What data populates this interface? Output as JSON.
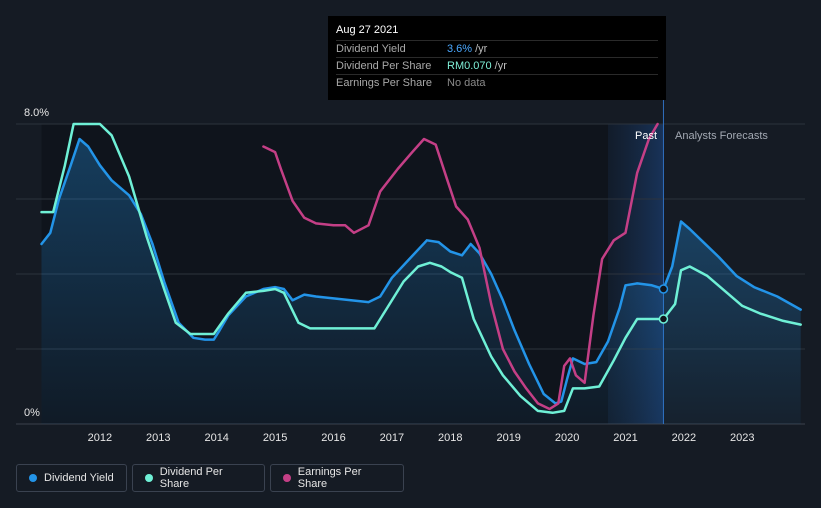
{
  "tooltip": {
    "date": "Aug 27 2021",
    "rows": [
      {
        "name": "Dividend Yield",
        "value": "3.6%",
        "unit": "/yr"
      },
      {
        "name": "Dividend Per Share",
        "value": "RM0.070",
        "unit": "/yr"
      },
      {
        "name": "Earnings Per Share",
        "value": "No data",
        "unit": ""
      }
    ]
  },
  "labels": {
    "past": "Past",
    "forecast": "Analysts Forecasts"
  },
  "legend": [
    {
      "label": "Dividend Yield",
      "color": "#2394e8"
    },
    {
      "label": "Dividend Per Share",
      "color": "#6ff0d6"
    },
    {
      "label": "Earnings Per Share",
      "color": "#c43f86"
    }
  ],
  "chart_data": {
    "type": "line",
    "title": "",
    "y_tick_labels": [
      "8.0%",
      "0%"
    ],
    "ylim": [
      0,
      8
    ],
    "x_ticks": [
      2012,
      2013,
      2014,
      2015,
      2016,
      2017,
      2018,
      2019,
      2020,
      2021,
      2022,
      2023
    ],
    "xlim": [
      2011.0,
      2024.0
    ],
    "past_end": 2021.65,
    "grid": true,
    "legend_position": "bottom-left",
    "series": [
      {
        "name": "Dividend Yield",
        "color": "#2394e8",
        "fill": true,
        "points": [
          [
            2011.0,
            4.8
          ],
          [
            2011.15,
            5.1
          ],
          [
            2011.3,
            6.0
          ],
          [
            2011.5,
            6.9
          ],
          [
            2011.65,
            7.6
          ],
          [
            2011.8,
            7.4
          ],
          [
            2012.0,
            6.9
          ],
          [
            2012.2,
            6.5
          ],
          [
            2012.5,
            6.1
          ],
          [
            2012.7,
            5.6
          ],
          [
            2012.9,
            4.8
          ],
          [
            2013.1,
            3.8
          ],
          [
            2013.35,
            2.7
          ],
          [
            2013.6,
            2.3
          ],
          [
            2013.8,
            2.25
          ],
          [
            2013.95,
            2.25
          ],
          [
            2014.05,
            2.5
          ],
          [
            2014.2,
            2.9
          ],
          [
            2014.5,
            3.4
          ],
          [
            2014.8,
            3.6
          ],
          [
            2015.0,
            3.65
          ],
          [
            2015.15,
            3.6
          ],
          [
            2015.3,
            3.3
          ],
          [
            2015.5,
            3.45
          ],
          [
            2015.7,
            3.4
          ],
          [
            2016.0,
            3.35
          ],
          [
            2016.3,
            3.3
          ],
          [
            2016.6,
            3.25
          ],
          [
            2016.8,
            3.4
          ],
          [
            2017.0,
            3.9
          ],
          [
            2017.3,
            4.4
          ],
          [
            2017.6,
            4.9
          ],
          [
            2017.8,
            4.85
          ],
          [
            2018.0,
            4.6
          ],
          [
            2018.2,
            4.5
          ],
          [
            2018.35,
            4.8
          ],
          [
            2018.5,
            4.55
          ],
          [
            2018.7,
            4.0
          ],
          [
            2018.9,
            3.3
          ],
          [
            2019.1,
            2.5
          ],
          [
            2019.35,
            1.6
          ],
          [
            2019.6,
            0.8
          ],
          [
            2019.8,
            0.55
          ],
          [
            2019.9,
            0.6
          ],
          [
            2020.0,
            1.2
          ],
          [
            2020.1,
            1.75
          ],
          [
            2020.3,
            1.6
          ],
          [
            2020.5,
            1.65
          ],
          [
            2020.7,
            2.2
          ],
          [
            2020.9,
            3.1
          ],
          [
            2021.0,
            3.7
          ],
          [
            2021.2,
            3.75
          ],
          [
            2021.45,
            3.7
          ],
          [
            2021.65,
            3.6
          ]
        ]
      },
      {
        "name": "Dividend Yield Forecast",
        "color": "#2394e8",
        "fill": true,
        "points": [
          [
            2021.65,
            3.6
          ],
          [
            2021.8,
            4.2
          ],
          [
            2021.95,
            5.4
          ],
          [
            2022.1,
            5.2
          ],
          [
            2022.3,
            4.9
          ],
          [
            2022.6,
            4.45
          ],
          [
            2022.9,
            3.95
          ],
          [
            2023.2,
            3.65
          ],
          [
            2023.6,
            3.4
          ],
          [
            2024.0,
            3.05
          ]
        ]
      },
      {
        "name": "Dividend Per Share",
        "color": "#6ff0d6",
        "fill": false,
        "points": [
          [
            2011.0,
            5.65
          ],
          [
            2011.2,
            5.65
          ],
          [
            2011.4,
            6.9
          ],
          [
            2011.55,
            8.0
          ],
          [
            2012.0,
            8.0
          ],
          [
            2012.2,
            7.7
          ],
          [
            2012.5,
            6.6
          ],
          [
            2012.8,
            5.0
          ],
          [
            2013.1,
            3.6
          ],
          [
            2013.3,
            2.7
          ],
          [
            2013.55,
            2.4
          ],
          [
            2013.95,
            2.4
          ],
          [
            2014.2,
            2.95
          ],
          [
            2014.5,
            3.5
          ],
          [
            2014.8,
            3.55
          ],
          [
            2015.0,
            3.6
          ],
          [
            2015.15,
            3.5
          ],
          [
            2015.4,
            2.7
          ],
          [
            2015.6,
            2.55
          ],
          [
            2016.0,
            2.55
          ],
          [
            2016.3,
            2.55
          ],
          [
            2016.7,
            2.55
          ],
          [
            2016.9,
            3.05
          ],
          [
            2017.2,
            3.8
          ],
          [
            2017.45,
            4.2
          ],
          [
            2017.65,
            4.3
          ],
          [
            2017.85,
            4.2
          ],
          [
            2018.0,
            4.05
          ],
          [
            2018.2,
            3.9
          ],
          [
            2018.4,
            2.8
          ],
          [
            2018.7,
            1.8
          ],
          [
            2018.9,
            1.3
          ],
          [
            2019.2,
            0.75
          ],
          [
            2019.5,
            0.35
          ],
          [
            2019.75,
            0.3
          ],
          [
            2019.95,
            0.35
          ],
          [
            2020.1,
            0.95
          ],
          [
            2020.3,
            0.95
          ],
          [
            2020.55,
            1.0
          ],
          [
            2020.8,
            1.7
          ],
          [
            2021.0,
            2.3
          ],
          [
            2021.2,
            2.8
          ],
          [
            2021.65,
            2.8
          ]
        ]
      },
      {
        "name": "Dividend Per Share Forecast",
        "color": "#6ff0d6",
        "fill": false,
        "points": [
          [
            2021.65,
            2.8
          ],
          [
            2021.85,
            3.2
          ],
          [
            2021.95,
            4.1
          ],
          [
            2022.1,
            4.2
          ],
          [
            2022.4,
            3.95
          ],
          [
            2022.7,
            3.55
          ],
          [
            2023.0,
            3.15
          ],
          [
            2023.3,
            2.95
          ],
          [
            2023.7,
            2.75
          ],
          [
            2024.0,
            2.65
          ]
        ]
      },
      {
        "name": "Earnings Per Share",
        "color": "#c43f86",
        "fill": false,
        "points": [
          [
            2014.8,
            7.4
          ],
          [
            2015.0,
            7.25
          ],
          [
            2015.1,
            6.8
          ],
          [
            2015.3,
            5.95
          ],
          [
            2015.5,
            5.5
          ],
          [
            2015.7,
            5.35
          ],
          [
            2016.0,
            5.3
          ],
          [
            2016.2,
            5.3
          ],
          [
            2016.35,
            5.1
          ],
          [
            2016.6,
            5.3
          ],
          [
            2016.8,
            6.2
          ],
          [
            2017.1,
            6.8
          ],
          [
            2017.35,
            7.25
          ],
          [
            2017.55,
            7.6
          ],
          [
            2017.75,
            7.45
          ],
          [
            2017.95,
            6.5
          ],
          [
            2018.1,
            5.8
          ],
          [
            2018.3,
            5.45
          ],
          [
            2018.5,
            4.7
          ],
          [
            2018.7,
            3.2
          ],
          [
            2018.9,
            2.0
          ],
          [
            2019.1,
            1.4
          ],
          [
            2019.3,
            0.95
          ],
          [
            2019.5,
            0.55
          ],
          [
            2019.7,
            0.4
          ],
          [
            2019.85,
            0.55
          ],
          [
            2019.95,
            1.55
          ],
          [
            2020.05,
            1.75
          ],
          [
            2020.15,
            1.3
          ],
          [
            2020.3,
            1.1
          ],
          [
            2020.45,
            2.9
          ],
          [
            2020.6,
            4.4
          ],
          [
            2020.8,
            4.9
          ],
          [
            2021.0,
            5.1
          ],
          [
            2021.2,
            6.7
          ],
          [
            2021.4,
            7.6
          ],
          [
            2021.55,
            8.0
          ]
        ]
      }
    ],
    "markers": [
      {
        "x": 2021.65,
        "y": 3.6,
        "color": "#2394e8"
      },
      {
        "x": 2021.65,
        "y": 2.8,
        "color": "#6ff0d6"
      }
    ]
  }
}
